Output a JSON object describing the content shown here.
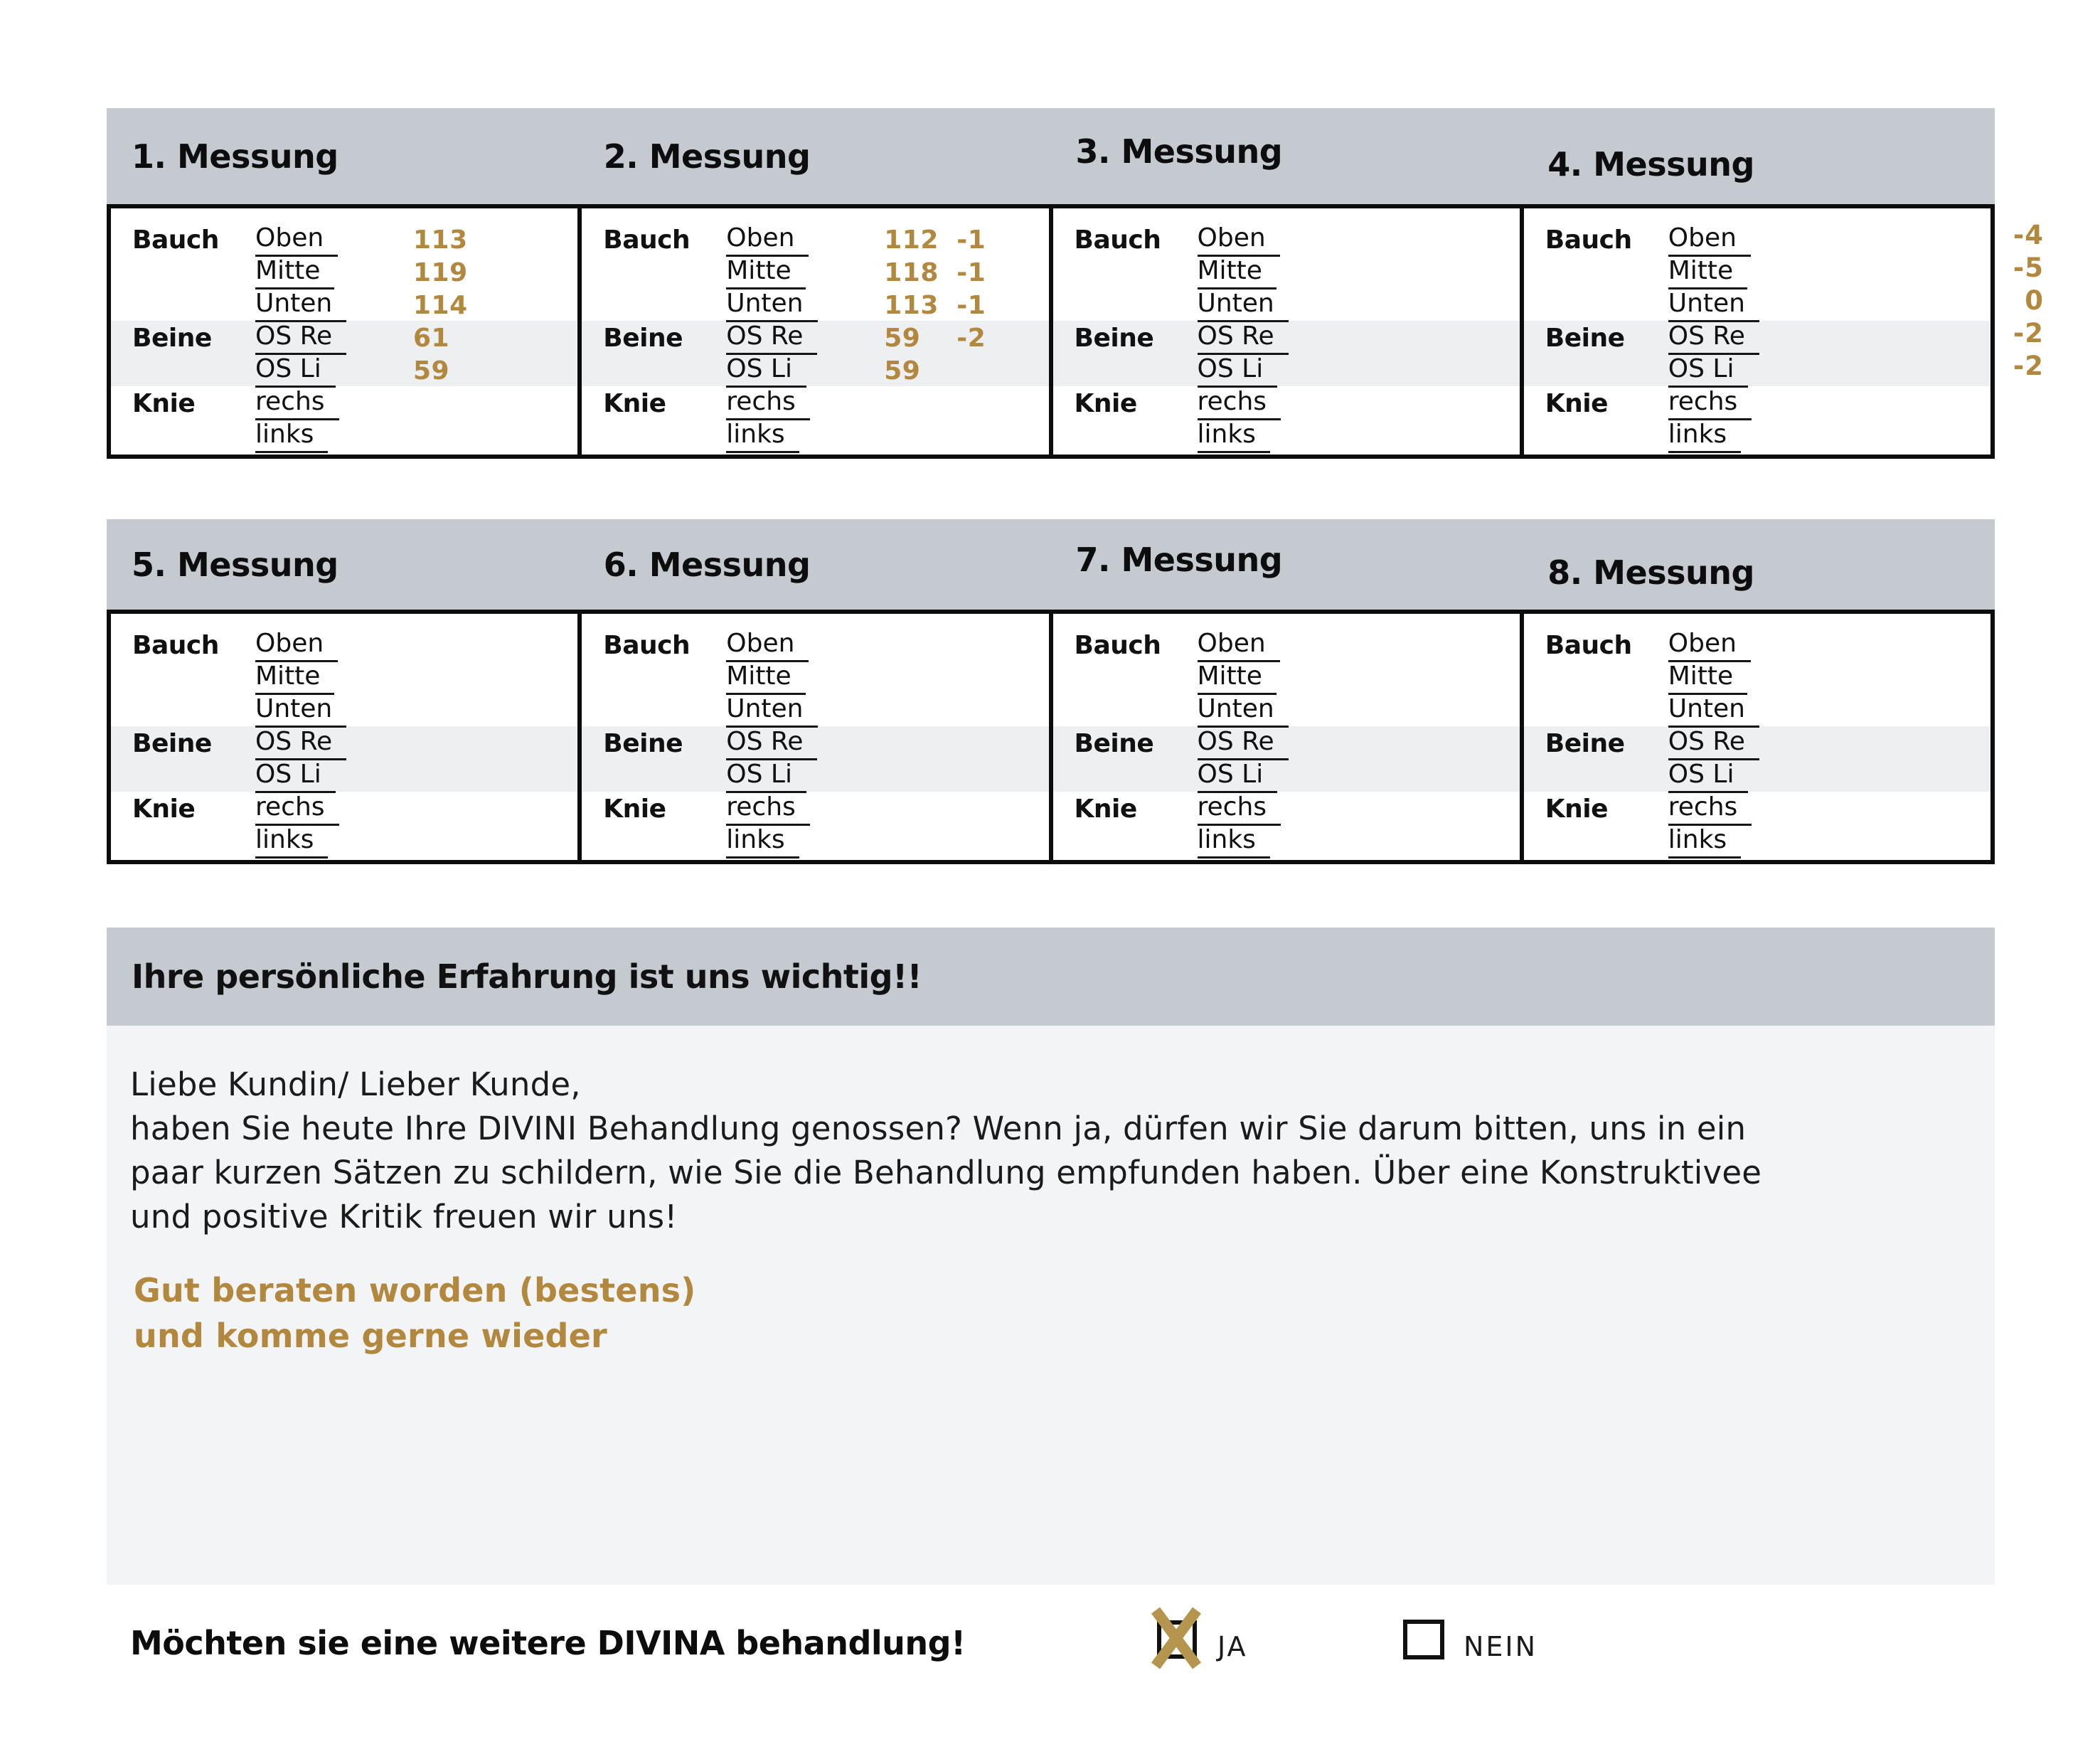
{
  "colors": {
    "header_gray": "#c4cad0",
    "panel_gray": "#f2f4f6",
    "stripe_gray": "#edeff1",
    "accent_gold": "#b2883e",
    "check_gold": "#b5954e",
    "border_black": "#0c0c0c"
  },
  "measurements": {
    "labels": {
      "bauch": "Bauch",
      "beine": "Beine",
      "knie": "Knie",
      "oben": "Oben",
      "mitte": "Mitte",
      "unten": "Unten",
      "os_re": "OS Re",
      "os_li": "OS Li",
      "rechs": "rechs",
      "links": "links"
    },
    "tables": [
      {
        "title": "1. Messung",
        "values": {
          "oben": "113",
          "mitte": "119",
          "unten": "114",
          "os_re": "61",
          "os_li": "59"
        },
        "deltas": {}
      },
      {
        "title": "2. Messung",
        "values": {
          "oben": "112",
          "mitte": "118",
          "unten": "113",
          "os_re": "59",
          "os_li": "59"
        },
        "deltas": {
          "oben": "-1",
          "mitte": "-1",
          "unten": "-1",
          "os_re": "-2"
        }
      },
      {
        "title": "3. Messung",
        "values": {},
        "deltas": {}
      },
      {
        "title": "4. Messung",
        "values": {},
        "deltas": {}
      },
      {
        "title": "5. Messung",
        "values": {},
        "deltas": {}
      },
      {
        "title": "6. Messung",
        "values": {},
        "deltas": {}
      },
      {
        "title": "7. Messung",
        "values": {},
        "deltas": {}
      },
      {
        "title": "8. Messung",
        "values": {},
        "deltas": {}
      }
    ],
    "summary_deltas": [
      "-4",
      "-5",
      "0",
      "-2",
      "-2"
    ]
  },
  "feedback": {
    "header": "Ihre persönliche Erfahrung ist uns wichtig!!",
    "body_lines": [
      "Liebe Kundin/ Lieber Kunde,",
      "haben Sie heute Ihre DIVINI Behandlung genossen? Wenn ja, dürfen wir Sie darum bitten, uns in ein",
      "paar kurzen Sätzen zu schildern, wie Sie die Behandlung empfunden haben. Über eine Konstruktivee",
      "und positive Kritik freuen wir uns!"
    ],
    "note_lines": [
      "Gut beraten worden (bestens)",
      "und komme gerne wieder"
    ]
  },
  "question": {
    "label": "Möchten sie eine weitere DIVINA behandlung!",
    "ja_label": "JA",
    "nein_label": "NEIN",
    "ja_checked": true,
    "nein_checked": false
  }
}
